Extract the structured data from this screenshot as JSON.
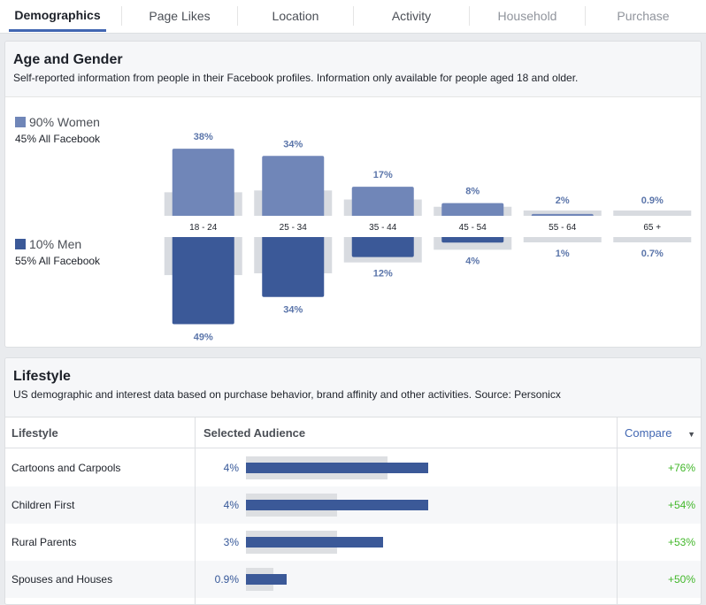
{
  "tabs": [
    {
      "label": "Demographics",
      "state": "active"
    },
    {
      "label": "Page Likes",
      "state": "normal"
    },
    {
      "label": "Location",
      "state": "normal"
    },
    {
      "label": "Activity",
      "state": "normal"
    },
    {
      "label": "Household",
      "state": "disabled"
    },
    {
      "label": "Purchase",
      "state": "disabled"
    }
  ],
  "age_gender": {
    "title": "Age and Gender",
    "subtitle": "Self-reported information from people in their Facebook profiles. Information only available for people aged 18 and older.",
    "women": {
      "label": "90% Women",
      "sub": "45% All Facebook",
      "color": "#7086b8"
    },
    "men": {
      "label": "10% Men",
      "sub": "55% All Facebook",
      "color": "#3b5998"
    }
  },
  "chart_data": {
    "type": "bar",
    "categories": [
      "18 - 24",
      "25 - 34",
      "35 - 44",
      "45 - 54",
      "55 - 64",
      "65 +"
    ],
    "series": [
      {
        "name": "Women",
        "values": [
          38,
          34,
          17,
          8,
          2,
          0.9
        ],
        "labels": [
          "38%",
          "34%",
          "17%",
          "8%",
          "2%",
          "0.9%"
        ],
        "all_facebook": [
          13,
          14,
          9,
          5,
          2.5,
          1.5
        ]
      },
      {
        "name": "Men",
        "values": [
          49,
          34,
          12,
          4,
          1,
          0.7
        ],
        "labels": [
          "49%",
          "34%",
          "12%",
          "4%",
          "1%",
          "0.7%"
        ],
        "all_facebook": [
          21,
          20,
          14,
          7,
          2.7,
          1.2
        ]
      }
    ],
    "colors": {
      "women": "#7086b8",
      "men": "#3b5998",
      "baseline": "#d8dbe0",
      "label": "#5b75aa"
    }
  },
  "lifestyle": {
    "title": "Lifestyle",
    "subtitle": "US demographic and interest data based on purchase behavior, brand affinity and other activities. Source: Personicx",
    "columns": {
      "lifestyle": "Lifestyle",
      "audience": "Selected Audience",
      "compare": "Compare"
    },
    "rows": [
      {
        "name": "Cartoons and Carpools",
        "pct": "4%",
        "selected": 4.0,
        "baseline": 3.1,
        "compare": "+76%"
      },
      {
        "name": "Children First",
        "pct": "4%",
        "selected": 4.0,
        "baseline": 2.0,
        "compare": "+54%"
      },
      {
        "name": "Rural Parents",
        "pct": "3%",
        "selected": 3.0,
        "baseline": 2.0,
        "compare": "+53%"
      },
      {
        "name": "Spouses and Houses",
        "pct": "0.9%",
        "selected": 0.9,
        "baseline": 0.6,
        "compare": "+50%"
      }
    ],
    "colors": {
      "selected": "#3b5998",
      "baseline": "#dddfe2",
      "compare": "#42b72a",
      "link": "#4267b2"
    }
  }
}
